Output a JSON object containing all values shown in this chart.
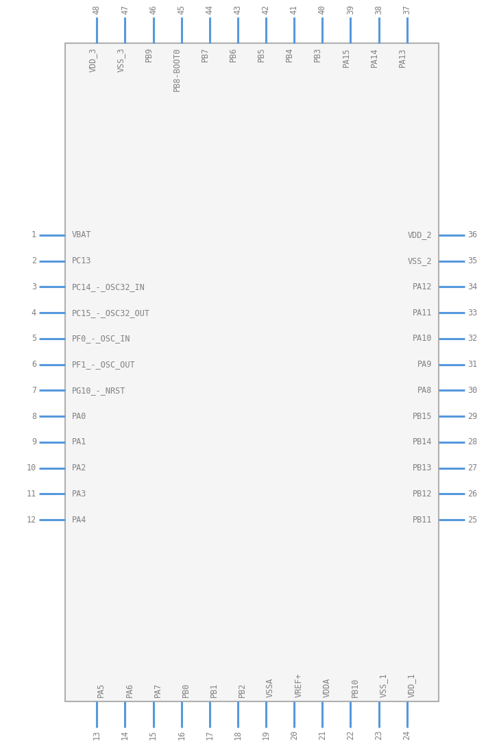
{
  "bg_color": "#ffffff",
  "box_color": "#b0b0b0",
  "box_face": "#f5f5f5",
  "pin_color": "#5599dd",
  "text_color": "#808080",
  "fig_w": 7.28,
  "fig_h": 10.88,
  "dpi": 100,
  "left_pins": [
    {
      "num": "1",
      "label": "VBAT"
    },
    {
      "num": "2",
      "label": "PC13"
    },
    {
      "num": "3",
      "label": "PC14_-_OSC32_IN"
    },
    {
      "num": "4",
      "label": "PC15_-_OSC32_OUT"
    },
    {
      "num": "5",
      "label": "PF0_-_OSC_IN"
    },
    {
      "num": "6",
      "label": "PF1_-_OSC_OUT"
    },
    {
      "num": "7",
      "label": "PG10_-_NRST"
    },
    {
      "num": "8",
      "label": "PA0"
    },
    {
      "num": "9",
      "label": "PA1"
    },
    {
      "num": "10",
      "label": "PA2"
    },
    {
      "num": "11",
      "label": "PA3"
    },
    {
      "num": "12",
      "label": "PA4"
    }
  ],
  "right_pins": [
    {
      "num": "36",
      "label": "VDD_2"
    },
    {
      "num": "35",
      "label": "VSS_2"
    },
    {
      "num": "34",
      "label": "PA12"
    },
    {
      "num": "33",
      "label": "PA11"
    },
    {
      "num": "32",
      "label": "PA10"
    },
    {
      "num": "31",
      "label": "PA9"
    },
    {
      "num": "30",
      "label": "PA8"
    },
    {
      "num": "29",
      "label": "PB15"
    },
    {
      "num": "28",
      "label": "PB14"
    },
    {
      "num": "27",
      "label": "PB13"
    },
    {
      "num": "26",
      "label": "PB12"
    },
    {
      "num": "25",
      "label": "PB11"
    }
  ],
  "top_pins": [
    {
      "num": "48",
      "label": "VDD_3"
    },
    {
      "num": "47",
      "label": "VSS_3"
    },
    {
      "num": "46",
      "label": "PB9"
    },
    {
      "num": "45",
      "label": "PB8-BOOT0"
    },
    {
      "num": "44",
      "label": "PB7"
    },
    {
      "num": "43",
      "label": "PB6"
    },
    {
      "num": "42",
      "label": "PB5"
    },
    {
      "num": "41",
      "label": "PB4"
    },
    {
      "num": "40",
      "label": "PB3"
    },
    {
      "num": "39",
      "label": "PA15"
    },
    {
      "num": "38",
      "label": "PA14"
    },
    {
      "num": "37",
      "label": "PA13"
    }
  ],
  "bottom_pins": [
    {
      "num": "13",
      "label": "PA5"
    },
    {
      "num": "14",
      "label": "PA6"
    },
    {
      "num": "15",
      "label": "PA7"
    },
    {
      "num": "16",
      "label": "PB0"
    },
    {
      "num": "17",
      "label": "PB1"
    },
    {
      "num": "18",
      "label": "PB2"
    },
    {
      "num": "19",
      "label": "VSSA"
    },
    {
      "num": "20",
      "label": "VREF+"
    },
    {
      "num": "21",
      "label": "VDDA"
    },
    {
      "num": "22",
      "label": "PB10"
    },
    {
      "num": "23",
      "label": "VSS_1"
    },
    {
      "num": "24",
      "label": "VDD_1"
    }
  ]
}
